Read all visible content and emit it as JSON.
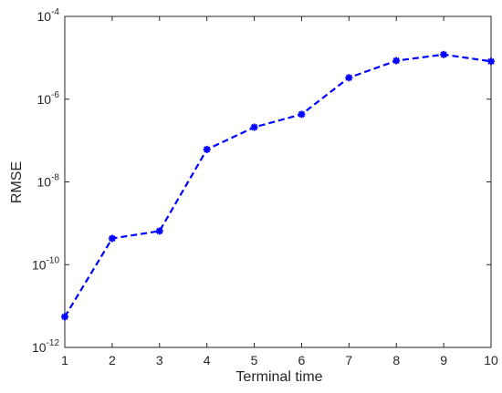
{
  "chart_data": {
    "type": "line",
    "title": "",
    "xlabel": "Terminal time",
    "ylabel": "RMSE",
    "xlim": [
      1,
      10
    ],
    "ylim": [
      1e-12,
      0.0001
    ],
    "yscale": "log",
    "x_ticks": [
      "1",
      "2",
      "3",
      "4",
      "5",
      "6",
      "7",
      "8",
      "9",
      "10"
    ],
    "y_ticks": [
      {
        "base": "10",
        "exp": "-12",
        "value": 1e-12
      },
      {
        "base": "10",
        "exp": "-10",
        "value": 1e-10
      },
      {
        "base": "10",
        "exp": "-8",
        "value": 1e-08
      },
      {
        "base": "10",
        "exp": "-6",
        "value": 1e-06
      },
      {
        "base": "10",
        "exp": "-4",
        "value": 0.0001
      }
    ],
    "grid": false,
    "series": [
      {
        "color": "#0000ff",
        "line_style": "dashed",
        "marker": "asterisk",
        "x": [
          1,
          2,
          3,
          4,
          5,
          6,
          7,
          8,
          9,
          10
        ],
        "y": [
          5.5e-12,
          4.3e-10,
          6.5e-10,
          6.1e-08,
          2.1e-07,
          4.3e-07,
          3.3e-06,
          8.5e-06,
          1.2e-05,
          8.2e-06
        ]
      }
    ]
  }
}
